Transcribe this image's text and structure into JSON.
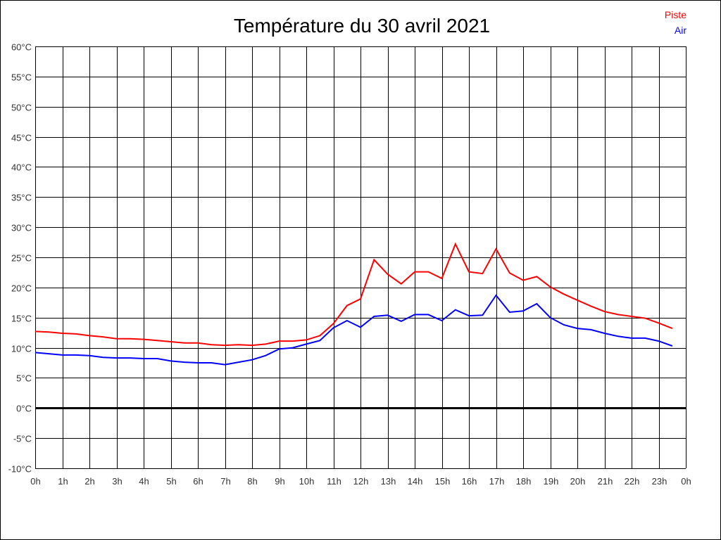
{
  "chart_data": {
    "type": "line",
    "title": "Température du 30 avril 2021",
    "xlabel": "",
    "ylabel": "",
    "xlim": [
      0,
      24
    ],
    "ylim": [
      -10,
      60
    ],
    "grid": true,
    "legend_position": "top-right",
    "x_tick_labels": [
      "0h",
      "1h",
      "2h",
      "3h",
      "4h",
      "5h",
      "6h",
      "7h",
      "8h",
      "9h",
      "10h",
      "11h",
      "12h",
      "13h",
      "14h",
      "15h",
      "16h",
      "17h",
      "18h",
      "19h",
      "20h",
      "21h",
      "22h",
      "23h",
      "0h"
    ],
    "y_ticks": [
      -10,
      -5,
      0,
      5,
      10,
      15,
      20,
      25,
      30,
      35,
      40,
      45,
      50,
      55,
      60
    ],
    "y_tick_labels": [
      "-10°C",
      "-5°C",
      "0°C",
      "5°C",
      "10°C",
      "15°C",
      "20°C",
      "25°C",
      "30°C",
      "35°C",
      "40°C",
      "45°C",
      "50°C",
      "55°C",
      "60°C"
    ],
    "x": [
      0,
      0.5,
      1,
      1.5,
      2,
      2.5,
      3,
      3.5,
      4,
      4.5,
      5,
      5.5,
      6,
      6.5,
      7,
      7.5,
      8,
      8.5,
      9,
      9.5,
      10,
      10.5,
      11,
      11.5,
      12,
      12.5,
      13,
      13.5,
      14,
      14.5,
      15,
      15.5,
      16,
      16.5,
      17,
      17.5,
      18,
      18.5,
      19,
      19.5,
      20,
      20.5,
      21,
      21.5,
      22,
      22.5,
      23,
      23.5
    ],
    "series": [
      {
        "name": "Piste",
        "color": "#ff0000",
        "values": [
          12.7,
          12.6,
          12.4,
          12.3,
          12.0,
          11.8,
          11.5,
          11.5,
          11.4,
          11.2,
          11.0,
          10.8,
          10.8,
          10.5,
          10.4,
          10.5,
          10.4,
          10.6,
          11.1,
          11.1,
          11.3,
          12.0,
          14.0,
          17.0,
          18.1,
          24.6,
          22.2,
          20.6,
          22.6,
          22.6,
          21.5,
          27.2,
          22.6,
          22.3,
          26.4,
          22.4,
          21.2,
          21.8,
          20.1,
          18.9,
          17.9,
          16.9,
          16.0,
          15.5,
          15.2,
          14.9,
          14.1,
          13.2
        ]
      },
      {
        "name": "Air",
        "color": "#0000ff",
        "values": [
          9.2,
          9.0,
          8.8,
          8.8,
          8.7,
          8.4,
          8.3,
          8.3,
          8.2,
          8.2,
          7.8,
          7.6,
          7.5,
          7.5,
          7.2,
          7.6,
          8.0,
          8.7,
          9.8,
          10.0,
          10.6,
          11.2,
          13.3,
          14.5,
          13.4,
          15.2,
          15.4,
          14.4,
          15.5,
          15.5,
          14.5,
          16.3,
          15.3,
          15.4,
          18.7,
          15.9,
          16.1,
          17.3,
          15.0,
          13.8,
          13.2,
          13.0,
          12.4,
          11.9,
          11.6,
          11.6,
          11.1,
          10.3
        ]
      }
    ]
  }
}
